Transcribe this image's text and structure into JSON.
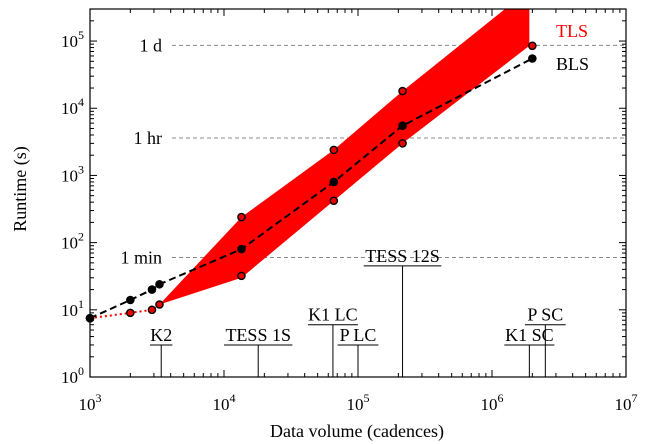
{
  "chart_data": {
    "type": "line",
    "xlabel": "Data volume (cadences)",
    "ylabel": "Runtime (s)",
    "xscale": "log",
    "yscale": "log",
    "xlim": [
      1000,
      10000000
    ],
    "ylim": [
      1,
      300000
    ],
    "xticks": [
      {
        "value": 1000,
        "label": "10",
        "exp": "3"
      },
      {
        "value": 10000,
        "label": "10",
        "exp": "4"
      },
      {
        "value": 100000,
        "label": "10",
        "exp": "5"
      },
      {
        "value": 1000000,
        "label": "10",
        "exp": "6"
      },
      {
        "value": 10000000,
        "label": "10",
        "exp": "7"
      }
    ],
    "yticks": [
      {
        "value": 1,
        "label": "10",
        "exp": "0"
      },
      {
        "value": 10,
        "label": "10",
        "exp": "1"
      },
      {
        "value": 100,
        "label": "10",
        "exp": "2"
      },
      {
        "value": 1000,
        "label": "10",
        "exp": "3"
      },
      {
        "value": 10000,
        "label": "10",
        "exp": "4"
      },
      {
        "value": 100000,
        "label": "10",
        "exp": "5"
      }
    ],
    "grid": false,
    "time_references": [
      {
        "label": "1 min",
        "value": 60
      },
      {
        "label": "1 hr",
        "value": 3600
      },
      {
        "label": "1 d",
        "value": 86400
      }
    ],
    "series": [
      {
        "name": "BLS",
        "color": "#000000",
        "style": "dashed",
        "x": [
          1000,
          2000,
          2900,
          3300,
          13500,
          66000,
          215000,
          2000000
        ],
        "y": [
          7.5,
          14,
          20,
          24,
          80,
          800,
          5500,
          55000
        ]
      },
      {
        "name": "TLS",
        "color": "#ff0000",
        "style": "dotted",
        "x": [
          1000,
          2000,
          2900,
          3300,
          13500,
          66000,
          215000,
          2000000
        ],
        "y": [
          7.5,
          9,
          10,
          12,
          32,
          420,
          3000,
          85000
        ]
      }
    ],
    "tls_band": {
      "color": "#ff0000",
      "upper": {
        "x": [
          3300,
          13500,
          66000,
          215000,
          1250000,
          1900000
        ],
        "y": [
          12,
          240,
          2400,
          18000,
          300000,
          300000
        ]
      },
      "lower": {
        "x": [
          3300,
          13500,
          66000,
          215000,
          1900000
        ],
        "y": [
          12,
          30,
          420,
          3000,
          85000
        ]
      },
      "upper_markers": {
        "x": [
          13500,
          66000,
          215000
        ],
        "y": [
          240,
          2400,
          18000
        ]
      }
    },
    "missions": [
      {
        "label": "K2",
        "x": 3400,
        "top_y": 3
      },
      {
        "label": "TESS 1S",
        "x": 18000,
        "top_y": 3
      },
      {
        "label": "K1 LC",
        "x": 65000,
        "top_y": 6
      },
      {
        "label": "P LC",
        "x": 100000,
        "top_y": 3
      },
      {
        "label": "TESS 12S",
        "x": 215000,
        "top_y": 45
      },
      {
        "label": "K1 SC",
        "x": 1900000,
        "top_y": 3
      },
      {
        "label": "P SC",
        "x": 2500000,
        "top_y": 6
      }
    ]
  }
}
